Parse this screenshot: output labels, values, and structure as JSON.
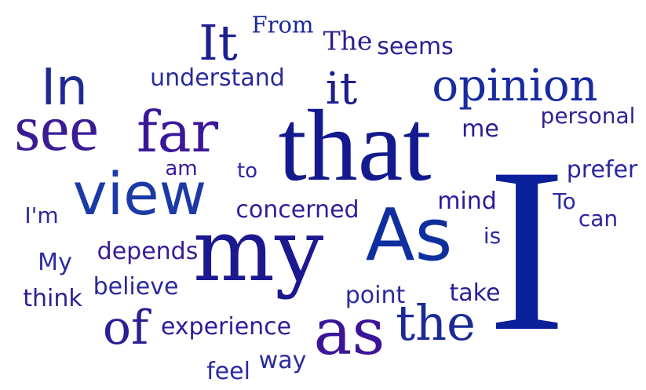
{
  "word_cloud": {
    "background": "#ffffff",
    "words": [
      {
        "text": "I",
        "color": "#0a1f9a"
      },
      {
        "text": "that",
        "color": "#141a8e"
      },
      {
        "text": "my",
        "color": "#1c1890"
      },
      {
        "text": "As",
        "color": "#0f2fa0"
      },
      {
        "text": "as",
        "color": "#3b1598"
      },
      {
        "text": "the",
        "color": "#1b2a95"
      },
      {
        "text": "see",
        "color": "#3a1b94"
      },
      {
        "text": "far",
        "color": "#3a1798"
      },
      {
        "text": "view",
        "color": "#1b3aa6"
      },
      {
        "text": "opinion",
        "color": "#1a2aa0"
      },
      {
        "text": "In",
        "color": "#1e2a92"
      },
      {
        "text": "It",
        "color": "#1f2090"
      },
      {
        "text": "it",
        "color": "#1d1e8e"
      },
      {
        "text": "of",
        "color": "#2a1f94"
      },
      {
        "text": "From",
        "color": "#1c2a9a"
      },
      {
        "text": "The",
        "color": "#2b1f92"
      },
      {
        "text": "seems",
        "color": "#2a2098"
      },
      {
        "text": "understand",
        "color": "#2a2a9a"
      },
      {
        "text": "personal",
        "color": "#2e2494"
      },
      {
        "text": "me",
        "color": "#2a1e92"
      },
      {
        "text": "am",
        "color": "#3b1a98"
      },
      {
        "text": "to",
        "color": "#2b28a0"
      },
      {
        "text": "prefer",
        "color": "#2a26a0"
      },
      {
        "text": "I'm",
        "color": "#2e2a9e"
      },
      {
        "text": "concerned",
        "color": "#2d1f98"
      },
      {
        "text": "mind",
        "color": "#2b1a98"
      },
      {
        "text": "To",
        "color": "#2c2ba6"
      },
      {
        "text": "can",
        "color": "#2e24a0"
      },
      {
        "text": "is",
        "color": "#2b2aa2"
      },
      {
        "text": "depends",
        "color": "#3a1b94"
      },
      {
        "text": "My",
        "color": "#2b2e9e"
      },
      {
        "text": "believe",
        "color": "#2a2a9a"
      },
      {
        "text": "think",
        "color": "#2a1f96"
      },
      {
        "text": "point",
        "color": "#2c2aa2"
      },
      {
        "text": "take",
        "color": "#2a1f96"
      },
      {
        "text": "experience",
        "color": "#2f1c98"
      },
      {
        "text": "feel",
        "color": "#2c2aa2"
      },
      {
        "text": "way",
        "color": "#2b2a9e"
      }
    ]
  }
}
